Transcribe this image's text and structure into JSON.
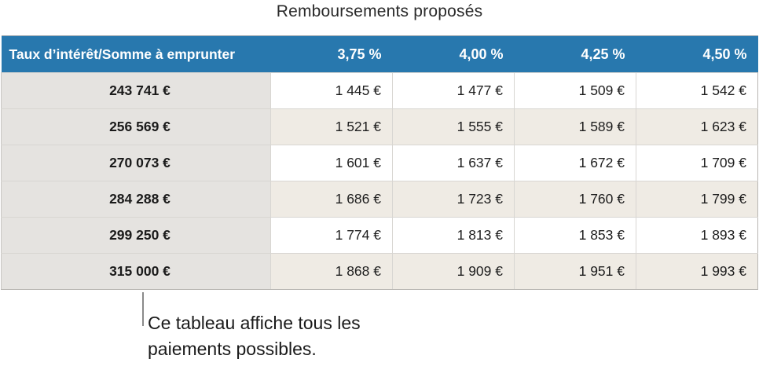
{
  "title": "Remboursements proposés",
  "table": {
    "corner_header": "Taux d’intérêt/Somme à emprunter",
    "rate_headers": [
      "3,75 %",
      "4,00 %",
      "4,25 %",
      "4,50 %"
    ],
    "rows": [
      {
        "amount": "243 741 €",
        "values": [
          "1 445 €",
          "1 477 €",
          "1 509 €",
          "1 542 €"
        ]
      },
      {
        "amount": "256 569 €",
        "values": [
          "1 521 €",
          "1 555 €",
          "1 589 €",
          "1 623 €"
        ]
      },
      {
        "amount": "270 073 €",
        "values": [
          "1 601 €",
          "1 637 €",
          "1 672 €",
          "1 709 €"
        ]
      },
      {
        "amount": "284 288 €",
        "values": [
          "1 686 €",
          "1 723 €",
          "1 760 €",
          "1 799 €"
        ]
      },
      {
        "amount": "299 250 €",
        "values": [
          "1 774 €",
          "1 813 €",
          "1 853 €",
          "1 893 €"
        ]
      },
      {
        "amount": "315 000 €",
        "values": [
          "1 868 €",
          "1 909 €",
          "1 951 €",
          "1 993 €"
        ]
      }
    ]
  },
  "callout": {
    "line1": "Ce tableau affiche tous les",
    "line2": "paiements possibles."
  },
  "colors": {
    "header_bg": "#2878ae",
    "header_text": "#ffffff",
    "row_header_bg": "#e5e3e0",
    "alt_row_bg": "#efebe4",
    "row_bg": "#ffffff"
  }
}
